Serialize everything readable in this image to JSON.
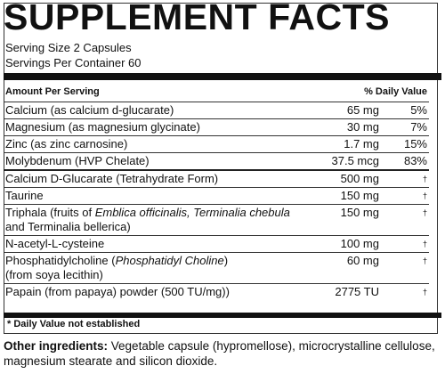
{
  "title": "SUPPLEMENT FACTS",
  "serving": [
    "Serving Size 2 Capsules",
    "Servings Per Container 60"
  ],
  "table": {
    "header": [
      "Amount Per Serving",
      "% Daily Value"
    ],
    "rows": [
      {
        "name": [
          "Calcium (as calcium d-glucarate)"
        ],
        "amount": "65 mg",
        "dv": "5%"
      },
      {
        "name": [
          "Magnesium (as magnesium glycinate)"
        ],
        "amount": "30 mg",
        "dv": "7%"
      },
      {
        "name": [
          "Zinc (as zinc carnosine)"
        ],
        "amount": "1.7 mg",
        "dv": "15%"
      },
      {
        "name": [
          "Molybdenum (HVP Chelate)"
        ],
        "amount": "37.5 mcg",
        "dv": "83%"
      },
      {
        "name": [
          "Calcium D-Glucarate (Tetrahydrate Form)"
        ],
        "amount": "500 mg",
        "dv": "†"
      },
      {
        "name": [
          "Taurine"
        ],
        "amount": "150 mg",
        "dv": "†"
      },
      {
        "name": [
          "Triphala (fruits of",
          "Emblica officinalis, Terminalia chebula",
          "and Terminalia bellerica)"
        ],
        "amount": "150 mg",
        "dv": "†"
      },
      {
        "name": [
          "N-acetyl-L-cysteine"
        ],
        "amount": "100 mg",
        "dv": "†"
      },
      {
        "name": [
          "Phosphatidylcholine (",
          "Phosphatidyl Choline",
          ")",
          "(from soya lecithin)"
        ],
        "amount": "60 mg",
        "dv": "†"
      },
      {
        "name": [
          "Papain (from papaya) powder (500 TU/mg))"
        ],
        "amount": "2775 TU",
        "dv": "†"
      }
    ]
  },
  "footnote": "* Daily Value not established",
  "other_ingredients": {
    "label": "Other ingredients:",
    "text": "Vegetable capsule (hypromellose), microcrystalline cellulose, magnesium stearate and silicon dioxide."
  }
}
